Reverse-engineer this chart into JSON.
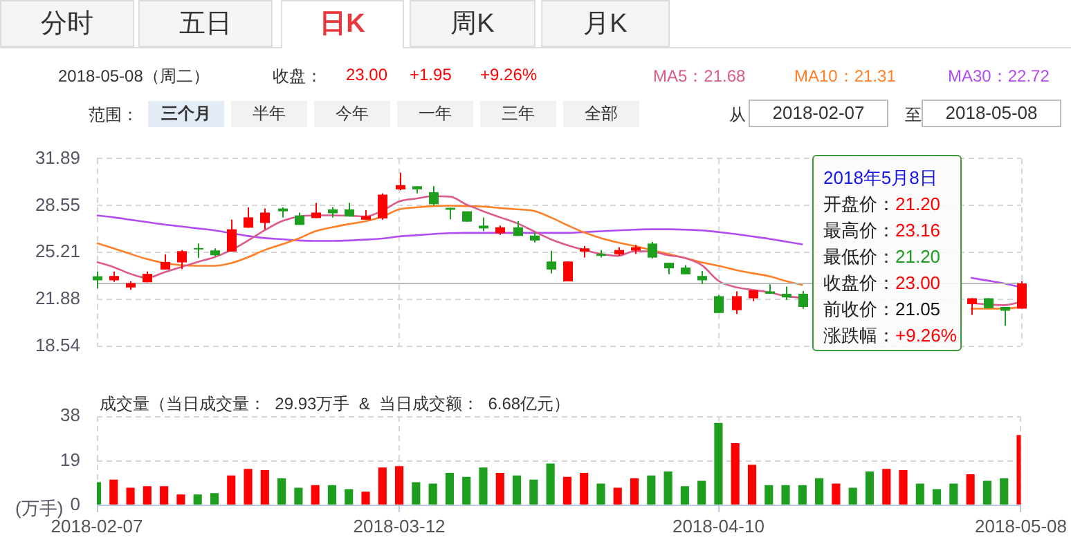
{
  "chart_data": [
    {
      "type": "candlestick",
      "categories": [
        "2018-02-07",
        null,
        null,
        null,
        null,
        null,
        null,
        null,
        null,
        null,
        null,
        null,
        null,
        null,
        null,
        null,
        null,
        null,
        "2018-03-12",
        null,
        null,
        null,
        null,
        null,
        null,
        null,
        null,
        null,
        null,
        null,
        null,
        null,
        null,
        null,
        null,
        null,
        null,
        "2018-04-10",
        null,
        null,
        null,
        null,
        null,
        null,
        null,
        null,
        null,
        null,
        null,
        null,
        null,
        null,
        null,
        null,
        null,
        "2018-05-08"
      ],
      "ohlc": [
        [
          23.51,
          23.85,
          22.65,
          23.22
        ],
        [
          23.22,
          23.85,
          23.11,
          23.53
        ],
        [
          22.71,
          23.16,
          22.54,
          23.02
        ],
        [
          23.08,
          23.85,
          23.08,
          23.68
        ],
        [
          23.99,
          25.07,
          23.99,
          24.53
        ],
        [
          24.5,
          25.38,
          24.02,
          25.3
        ],
        [
          25.52,
          25.84,
          24.81,
          25.44
        ],
        [
          25.35,
          25.5,
          24.93,
          25.01
        ],
        [
          25.27,
          27.54,
          25.27,
          26.86
        ],
        [
          26.97,
          28.42,
          26.97,
          27.71
        ],
        [
          27.31,
          28.34,
          26.86,
          28.05
        ],
        [
          28.34,
          28.42,
          27.71,
          28.14
        ],
        [
          27.85,
          28.05,
          27.17,
          27.17
        ],
        [
          27.66,
          28.74,
          27.66,
          28.05
        ],
        [
          28.28,
          28.45,
          27.71,
          28.0
        ],
        [
          28.28,
          28.74,
          27.77,
          27.77
        ],
        [
          27.54,
          28.22,
          27.54,
          27.8
        ],
        [
          27.63,
          29.42,
          27.54,
          29.33
        ],
        [
          29.7,
          30.9,
          29.64,
          30.01
        ],
        [
          29.93,
          29.93,
          29.42,
          29.7
        ],
        [
          29.5,
          29.93,
          28.56,
          28.65
        ],
        [
          28.39,
          28.39,
          27.57,
          28.25
        ],
        [
          28.14,
          28.14,
          27.4,
          27.4
        ],
        [
          27.12,
          27.71,
          26.72,
          26.92
        ],
        [
          26.58,
          27.12,
          26.46,
          27.0
        ],
        [
          27.0,
          27.43,
          26.38,
          26.38
        ],
        [
          26.41,
          26.63,
          25.92,
          26.06
        ],
        [
          24.56,
          25.33,
          23.71,
          23.99
        ],
        [
          23.14,
          24.56,
          23.14,
          24.56
        ],
        [
          25.27,
          25.67,
          24.84,
          25.5
        ],
        [
          25.1,
          25.38,
          24.84,
          24.96
        ],
        [
          25.07,
          25.58,
          24.98,
          25.38
        ],
        [
          25.35,
          25.75,
          25.1,
          25.58
        ],
        [
          25.84,
          25.95,
          24.78,
          24.84
        ],
        [
          24.47,
          24.47,
          23.65,
          24.07
        ],
        [
          24.13,
          24.3,
          23.65,
          23.65
        ],
        [
          23.53,
          23.88,
          22.96,
          23.22
        ],
        [
          22.09,
          22.17,
          20.89,
          20.89
        ],
        [
          21.09,
          22.43,
          20.81,
          22.09
        ],
        [
          21.94,
          22.51,
          21.74,
          22.51
        ],
        [
          22.43,
          22.94,
          22.26,
          22.26
        ],
        [
          22.26,
          22.77,
          21.83,
          22.0
        ],
        [
          22.26,
          22.45,
          21.18,
          21.32
        ],
        null,
        null,
        null,
        null,
        null,
        null,
        null,
        null,
        null,
        [
          21.52,
          21.94,
          20.75,
          21.94
        ],
        [
          21.94,
          21.94,
          21.23,
          21.23
        ],
        [
          21.32,
          21.32,
          19.98,
          21.05
        ],
        [
          21.2,
          23.16,
          21.2,
          23.0
        ]
      ],
      "colors": [
        "#1e9e1e",
        "#ff0000",
        "#ff0000",
        "#ff0000",
        "#ff0000",
        "#ff0000",
        "#1e9e1e",
        "#1e9e1e",
        "#ff0000",
        "#ff0000",
        "#ff0000",
        "#1e9e1e",
        "#1e9e1e",
        "#ff0000",
        "#1e9e1e",
        "#1e9e1e",
        "#ff0000",
        "#ff0000",
        "#ff0000",
        "#1e9e1e",
        "#1e9e1e",
        "#1e9e1e",
        "#1e9e1e",
        "#1e9e1e",
        "#ff0000",
        "#1e9e1e",
        "#1e9e1e",
        "#1e9e1e",
        "#ff0000",
        "#ff0000",
        "#1e9e1e",
        "#ff0000",
        "#ff0000",
        "#1e9e1e",
        "#1e9e1e",
        "#1e9e1e",
        "#1e9e1e",
        "#1e9e1e",
        "#ff0000",
        "#ff0000",
        "#1e9e1e",
        "#1e9e1e",
        "#1e9e1e",
        null,
        null,
        null,
        null,
        null,
        null,
        null,
        null,
        null,
        "#ff0000",
        "#1e9e1e",
        "#1e9e1e",
        "#ff0000"
      ],
      "series": [
        {
          "type": "line",
          "name": "MA5：21.68",
          "color": "#dc5a8c",
          "values": [
            24.53,
            24.16,
            23.68,
            23.39,
            23.79,
            24.16,
            24.53,
            24.87,
            25.38,
            26.06,
            26.8,
            27.43,
            27.77,
            27.85,
            27.85,
            27.83,
            27.77,
            28.19,
            28.85,
            29.05,
            29.22,
            29.19,
            28.62,
            28.14,
            27.71,
            27.29,
            26.72,
            26.15,
            25.72,
            25.38,
            25.1,
            24.96,
            25.3,
            25.27,
            25.01,
            24.81,
            24.3,
            23.17,
            22.74,
            22.54,
            22.37,
            22.09,
            21.97,
            null,
            null,
            null,
            null,
            null,
            null,
            null,
            null,
            null,
            21.6,
            21.5,
            21.45,
            21.68
          ]
        },
        {
          "type": "line",
          "name": "MA10：21.31",
          "color": "#ff7f27",
          "values": [
            25.87,
            25.5,
            25.1,
            24.73,
            24.45,
            24.3,
            24.25,
            24.25,
            24.45,
            24.87,
            25.38,
            25.78,
            26.2,
            26.72,
            27.0,
            27.23,
            27.43,
            27.77,
            28.28,
            28.42,
            28.51,
            28.54,
            28.51,
            28.48,
            28.37,
            28.28,
            28.17,
            27.71,
            27.15,
            26.63,
            26.23,
            25.92,
            25.67,
            25.38,
            25.1,
            24.81,
            24.5,
            24.25,
            23.96,
            23.73,
            23.51,
            23.17,
            22.88,
            null,
            null,
            null,
            null,
            null,
            null,
            null,
            null,
            null,
            21.2,
            21.2,
            21.2,
            21.31
          ]
        },
        {
          "type": "line",
          "name": "MA30：22.72",
          "color": "#b14cf0",
          "values": [
            27.85,
            27.71,
            27.54,
            27.37,
            27.2,
            27.06,
            26.92,
            26.78,
            26.58,
            26.38,
            26.23,
            26.15,
            26.06,
            26.03,
            26.03,
            26.06,
            26.12,
            26.2,
            26.35,
            26.43,
            26.52,
            26.58,
            26.6,
            26.6,
            26.6,
            26.6,
            26.6,
            26.6,
            26.6,
            26.66,
            26.72,
            26.78,
            26.83,
            26.86,
            26.86,
            26.83,
            26.78,
            26.66,
            26.52,
            26.35,
            26.18,
            25.98,
            25.78,
            null,
            null,
            null,
            null,
            null,
            null,
            null,
            null,
            null,
            23.4,
            23.2,
            23.0,
            22.72
          ]
        }
      ],
      "ylim": [
        18.54,
        31.89
      ],
      "yticks": [
        18.54,
        21.88,
        25.21,
        28.55,
        31.89
      ],
      "grid": true,
      "legend": "top right",
      "tick_labels": "y",
      "ref_lines": [
        {
          "axis": "y",
          "value": 23.0,
          "color": "#bbbbbb"
        }
      ],
      "annotations": [
        "分时",
        "五日",
        "日K",
        "周K",
        "月K",
        "2018-05-08（周二）",
        "收盘：",
        "23.00",
        "+1.95",
        "+9.26%",
        "范围：",
        "三个月",
        "半年",
        "今年",
        "一年",
        "三年",
        "全部",
        "从",
        "2018-02-07",
        "至",
        "2018-05-08",
        "2018年5月8日",
        "开盘价：21.20",
        "最高价：23.16",
        "最低价：21.20",
        "收盘价：23.00",
        "前收价：21.05",
        "涨跌幅：+9.26%"
      ]
    },
    {
      "type": "bar",
      "title": "成交量（当日成交量：  29.93万手  &  当日成交额：  6.68亿元）",
      "ylabel": "(万手)",
      "categories": [
        "2018-02-07",
        null,
        null,
        null,
        null,
        null,
        null,
        null,
        null,
        null,
        null,
        null,
        null,
        null,
        null,
        null,
        null,
        null,
        "2018-03-12",
        null,
        null,
        null,
        null,
        null,
        null,
        null,
        null,
        null,
        null,
        null,
        null,
        null,
        null,
        null,
        null,
        null,
        null,
        "2018-04-10",
        null,
        null,
        null,
        null,
        null,
        null,
        null,
        null,
        null,
        null,
        null,
        null,
        null,
        null,
        null,
        null,
        null,
        "2018-05-08"
      ],
      "values": [
        9.8,
        10.9,
        7.5,
        8.1,
        8.1,
        4.6,
        4.6,
        5.2,
        12.7,
        15.5,
        15.0,
        11.5,
        7.5,
        8.6,
        8.6,
        6.9,
        5.8,
        16.1,
        16.7,
        9.8,
        9.2,
        13.8,
        12.1,
        16.1,
        13.8,
        12.7,
        10.9,
        17.8,
        12.1,
        13.8,
        9.2,
        7.5,
        11.5,
        12.7,
        14.4,
        8.1,
        10.4,
        35.1,
        26.5,
        17.3,
        8.6,
        8.6,
        8.6,
        11.5,
        9.2,
        7.5,
        14.4,
        15.5,
        15.0,
        9.2,
        6.9,
        9.2,
        13.2,
        10.4,
        11.5,
        29.93
      ],
      "colors": [
        "#1e9e1e",
        "#ff0000",
        "#ff0000",
        "#ff0000",
        "#ff0000",
        "#ff0000",
        "#1e9e1e",
        "#1e9e1e",
        "#ff0000",
        "#ff0000",
        "#ff0000",
        "#1e9e1e",
        "#1e9e1e",
        "#ff0000",
        "#1e9e1e",
        "#1e9e1e",
        "#ff0000",
        "#ff0000",
        "#ff0000",
        "#1e9e1e",
        "#1e9e1e",
        "#1e9e1e",
        "#1e9e1e",
        "#1e9e1e",
        "#ff0000",
        "#1e9e1e",
        "#1e9e1e",
        "#1e9e1e",
        "#ff0000",
        "#ff0000",
        "#1e9e1e",
        "#ff0000",
        "#ff0000",
        "#1e9e1e",
        "#1e9e1e",
        "#1e9e1e",
        "#1e9e1e",
        "#1e9e1e",
        "#ff0000",
        "#ff0000",
        "#1e9e1e",
        "#1e9e1e",
        "#1e9e1e",
        "#1e9e1e",
        "#ff0000",
        "#1e9e1e",
        "#1e9e1e",
        "#ff0000",
        "#ff0000",
        "#1e9e1e",
        "#1e9e1e",
        "#1e9e1e",
        "#ff0000",
        "#1e9e1e",
        "#1e9e1e",
        "#ff0000"
      ],
      "ylim": [
        0,
        38
      ],
      "yticks": [
        0,
        19,
        38
      ],
      "grid": true
    }
  ]
}
